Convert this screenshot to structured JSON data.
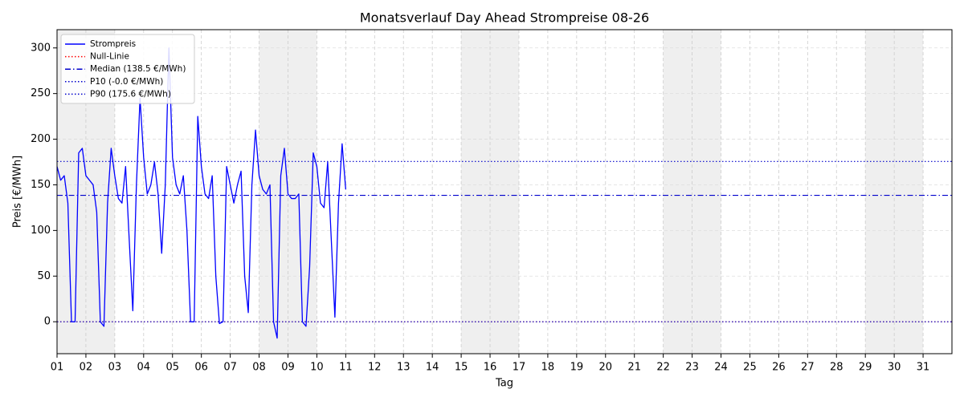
{
  "chart_data": {
    "type": "line",
    "title": "Monatsverlauf Day Ahead Strompreise 08-26",
    "xlabel": "Tag",
    "ylabel": "Preis [€/MWh]",
    "xlim": [
      1,
      32
    ],
    "ylim": [
      -35,
      320
    ],
    "yticks": [
      0,
      50,
      100,
      150,
      200,
      250,
      300
    ],
    "xticks": [
      {
        "value": 1,
        "label": "01"
      },
      {
        "value": 2,
        "label": "02"
      },
      {
        "value": 3,
        "label": "03"
      },
      {
        "value": 4,
        "label": "04"
      },
      {
        "value": 5,
        "label": "05"
      },
      {
        "value": 6,
        "label": "06"
      },
      {
        "value": 7,
        "label": "07"
      },
      {
        "value": 8,
        "label": "08"
      },
      {
        "value": 9,
        "label": "09"
      },
      {
        "value": 10,
        "label": "10"
      },
      {
        "value": 11,
        "label": "11"
      },
      {
        "value": 12,
        "label": "12"
      },
      {
        "value": 13,
        "label": "13"
      },
      {
        "value": 14,
        "label": "14"
      },
      {
        "value": 15,
        "label": "15"
      },
      {
        "value": 16,
        "label": "16"
      },
      {
        "value": 17,
        "label": "17"
      },
      {
        "value": 18,
        "label": "18"
      },
      {
        "value": 19,
        "label": "19"
      },
      {
        "value": 20,
        "label": "20"
      },
      {
        "value": 21,
        "label": "21"
      },
      {
        "value": 22,
        "label": "22"
      },
      {
        "value": 23,
        "label": "23"
      },
      {
        "value": 24,
        "label": "24"
      },
      {
        "value": 25,
        "label": "25"
      },
      {
        "value": 26,
        "label": "26"
      },
      {
        "value": 27,
        "label": "27"
      },
      {
        "value": 28,
        "label": "28"
      },
      {
        "value": 29,
        "label": "29"
      },
      {
        "value": 30,
        "label": "30"
      },
      {
        "value": 31,
        "label": "31"
      }
    ],
    "grid": true,
    "legend": "upper left",
    "weekend_shading": [
      [
        1,
        3
      ],
      [
        8,
        10
      ],
      [
        15,
        17
      ],
      [
        22,
        24
      ],
      [
        29,
        31
      ]
    ],
    "series": [
      {
        "name": "Strompreis",
        "color": "#0000ff",
        "x": [
          1.0,
          1.125,
          1.25,
          1.375,
          1.5,
          1.625,
          1.75,
          1.875,
          2.0,
          2.125,
          2.25,
          2.375,
          2.5,
          2.625,
          2.75,
          2.875,
          3.0,
          3.125,
          3.25,
          3.375,
          3.5,
          3.625,
          3.75,
          3.875,
          4.0,
          4.125,
          4.25,
          4.375,
          4.5,
          4.625,
          4.75,
          4.875,
          5.0,
          5.125,
          5.25,
          5.375,
          5.5,
          5.625,
          5.75,
          5.875,
          6.0,
          6.125,
          6.25,
          6.375,
          6.5,
          6.625,
          6.75,
          6.875,
          7.0,
          7.125,
          7.25,
          7.375,
          7.5,
          7.625,
          7.75,
          7.875,
          8.0,
          8.125,
          8.25,
          8.375,
          8.5,
          8.625,
          8.75,
          8.875,
          9.0,
          9.125,
          9.25,
          9.375,
          9.5,
          9.625,
          9.75,
          9.875,
          10.0,
          10.125,
          10.25,
          10.375,
          10.5,
          10.625,
          10.75,
          10.875,
          11.0
        ],
        "values": [
          170,
          155,
          160,
          130,
          0,
          0,
          185,
          190,
          160,
          155,
          150,
          120,
          0,
          -5,
          130,
          190,
          160,
          135,
          130,
          170,
          90,
          12,
          150,
          245,
          180,
          140,
          150,
          175,
          140,
          75,
          150,
          300,
          180,
          150,
          140,
          160,
          100,
          0,
          0,
          225,
          170,
          140,
          135,
          160,
          50,
          -2,
          0,
          170,
          150,
          130,
          150,
          165,
          50,
          10,
          150,
          210,
          160,
          145,
          140,
          150,
          0,
          -18,
          160,
          190,
          140,
          135,
          135,
          140,
          0,
          -5,
          60,
          185,
          170,
          130,
          125,
          175,
          90,
          5,
          130,
          195,
          145
        ]
      }
    ],
    "hlines": [
      {
        "name": "Null-Linie",
        "value": 0,
        "color": "#ff0000",
        "style": "dotted"
      },
      {
        "name": "Median (138.5 €/MWh)",
        "value": 138.5,
        "color": "#0000cc",
        "style": "dashdot"
      },
      {
        "name": "P10 (-0.0 €/MWh)",
        "value": 0,
        "color": "#0000cc",
        "style": "dotted"
      },
      {
        "name": "P90 (175.6 €/MWh)",
        "value": 175.6,
        "color": "#0000cc",
        "style": "dotted"
      }
    ]
  }
}
